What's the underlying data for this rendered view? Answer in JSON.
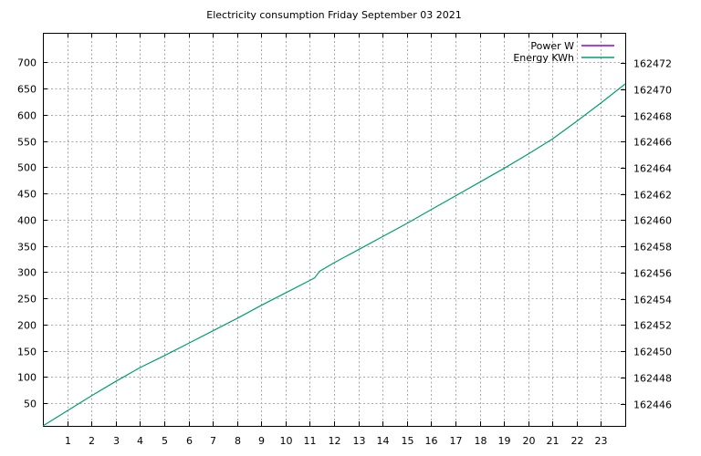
{
  "page": {
    "background": "#ffffff"
  },
  "chart_data": {
    "type": "line",
    "title": "Electricity consumption Friday September 03 2021",
    "xlabel": "",
    "ylabel_left": "",
    "ylabel_right": "",
    "xlim": [
      0,
      24
    ],
    "ylim_left": [
      6.5,
      756.5
    ],
    "ylim_right": [
      162444.3,
      162474.3
    ],
    "xticks": [
      1,
      2,
      3,
      4,
      5,
      6,
      7,
      8,
      9,
      10,
      11,
      12,
      13,
      14,
      15,
      16,
      17,
      18,
      19,
      20,
      21,
      22,
      23
    ],
    "yticks_left": [
      50,
      100,
      150,
      200,
      250,
      300,
      350,
      400,
      450,
      500,
      550,
      600,
      650,
      700
    ],
    "yticks_right": [
      162446,
      162448,
      162450,
      162452,
      162454,
      162456,
      162458,
      162460,
      162462,
      162464,
      162466,
      162468,
      162470,
      162472
    ],
    "grid": true,
    "legend_position": "top-right-inside",
    "grid_color": "#a8a8a8",
    "border_color": "#000000",
    "series": [
      {
        "name": "Power W",
        "color": "#9400d3",
        "axis": "left",
        "visible_in_plot": false,
        "points": []
      },
      {
        "name": "Energy KWh",
        "color": "#009e73",
        "axis": "right",
        "visible_in_plot": true,
        "points": [
          [
            0,
            162444.3
          ],
          [
            1,
            162445.45
          ],
          [
            2,
            162446.6
          ],
          [
            3,
            162447.7
          ],
          [
            4,
            162448.75
          ],
          [
            5,
            162449.65
          ],
          [
            6,
            162450.6
          ],
          [
            7,
            162451.55
          ],
          [
            8,
            162452.5
          ],
          [
            9,
            162453.5
          ],
          [
            10,
            162454.45
          ],
          [
            11,
            162455.4
          ],
          [
            11.2,
            162455.6
          ],
          [
            11.4,
            162456.1
          ],
          [
            12,
            162456.75
          ],
          [
            13,
            162457.75
          ],
          [
            14,
            162458.75
          ],
          [
            15,
            162459.75
          ],
          [
            16,
            162460.8
          ],
          [
            17,
            162461.85
          ],
          [
            18,
            162462.9
          ],
          [
            19,
            162463.95
          ],
          [
            20,
            162465.05
          ],
          [
            21,
            162466.2
          ],
          [
            22,
            162467.55
          ],
          [
            23,
            162468.95
          ],
          [
            24,
            162470.4
          ]
        ]
      }
    ]
  }
}
